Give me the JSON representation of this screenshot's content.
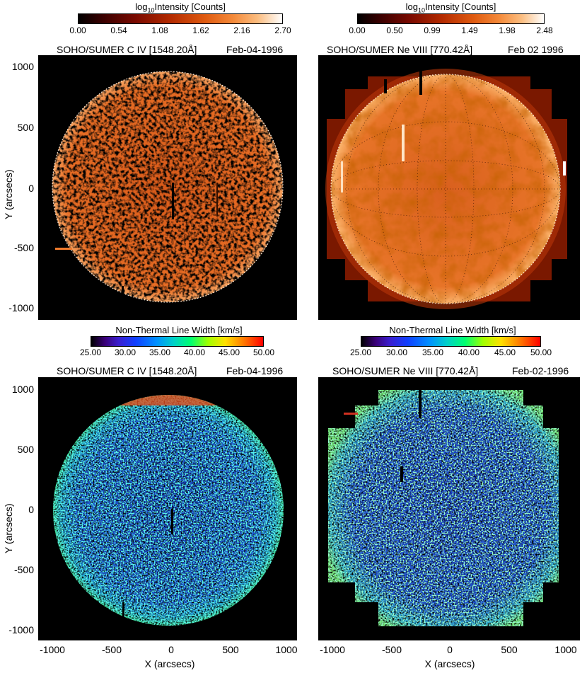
{
  "colorbars": {
    "intensity_label": "Intensity [Counts]",
    "intensity_log_prefix": "log",
    "intensity_log_sub": "10",
    "civ_intensity_ticks": [
      "0.00",
      "0.54",
      "1.08",
      "1.62",
      "2.16",
      "2.70"
    ],
    "neviii_intensity_ticks": [
      "0.00",
      "0.50",
      "0.99",
      "1.49",
      "1.98",
      "2.48"
    ],
    "nonthermal_label": "Non-Thermal Line Width [km/s]",
    "nonthermal_ticks": [
      "25.00",
      "30.00",
      "35.00",
      "40.00",
      "45.00",
      "50.00"
    ]
  },
  "panels": {
    "top_left": {
      "title": "SOHO/SUMER C IV [1548.20Å]",
      "date": "Feb-04-1996"
    },
    "top_right": {
      "title": "SOHO/SUMER Ne VIII [770.42Å]",
      "date": "Feb  02  1996"
    },
    "bottom_left": {
      "title": "SOHO/SUMER C IV [1548.20Å]",
      "date": "Feb-04-1996"
    },
    "bottom_right": {
      "title": "SOHO/SUMER Ne VIII [770.42Å]",
      "date": "Feb-02-1996"
    }
  },
  "axes": {
    "y_label": "Y (arcsecs)",
    "x_label": "X (arcsecs)",
    "y_ticks": [
      "1000",
      "500",
      "0",
      "-500",
      "-1000"
    ],
    "x_ticks": [
      "-1000",
      "-500",
      "0",
      "500",
      "1000"
    ]
  },
  "colors": {
    "heat_disk": "#e0621e",
    "heat_limb": "#f59a52",
    "rainbow_disk": "#1a46d8",
    "rainbow_limb": "#30d890"
  }
}
